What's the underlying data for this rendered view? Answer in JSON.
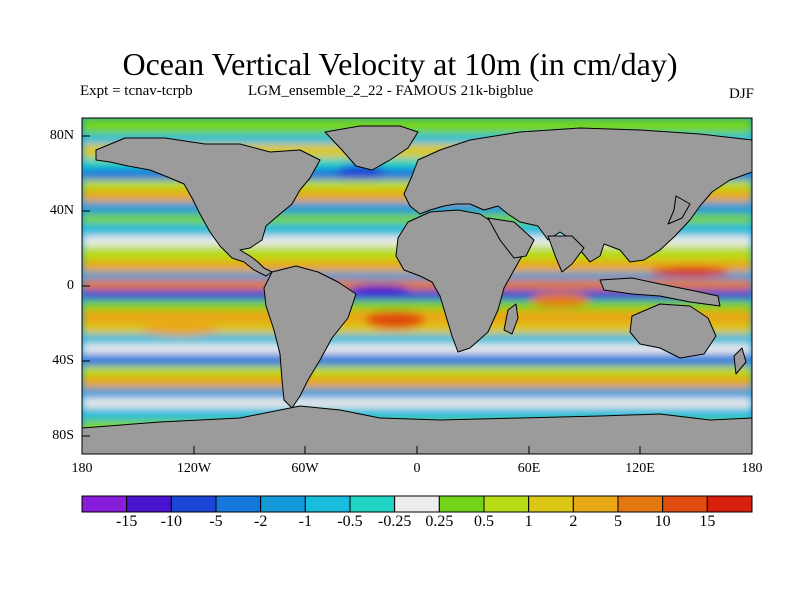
{
  "title": "Ocean Vertical Velocity at 10m (in cm/day)",
  "expt": "Expt = tcnav-tcrpb",
  "run": "LGM_ensemble_2_22 - FAMOUS 21k-bigblue",
  "season": "DJF",
  "lat_labels": [
    "80N",
    "40N",
    "0",
    "40S",
    "80S"
  ],
  "lon_labels": [
    "180",
    "120W",
    "60W",
    "0",
    "60E",
    "120E",
    "180"
  ],
  "colorbar": {
    "labels": [
      "-15",
      "-10",
      "-5",
      "-2",
      "-1",
      "-0.5",
      "-0.25",
      "0.25",
      "0.5",
      "1",
      "2",
      "5",
      "10",
      "15"
    ],
    "colors": [
      "#8a1cdc",
      "#4a14d0",
      "#1c46d8",
      "#1478dc",
      "#149ad8",
      "#18bcdc",
      "#20d4c4",
      "#ececec",
      "#74d41c",
      "#b8dc14",
      "#dcc814",
      "#e8a814",
      "#e47810",
      "#e04c10",
      "#d8200c"
    ]
  },
  "map_colors": {
    "land": "#9b9b9b",
    "coast": "#000000"
  }
}
